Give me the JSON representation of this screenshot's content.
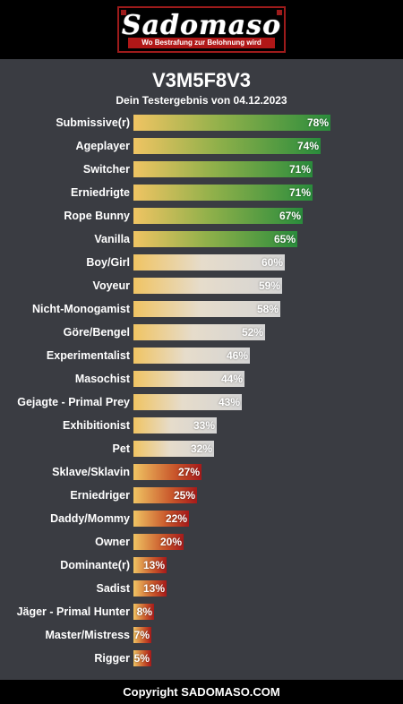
{
  "logo": {
    "word": "Sadomaso",
    "tagline": "Wo Bestrafung zur Belohnung wird"
  },
  "header": {
    "title": "V3M5F8V3",
    "subtitle": "Dein Testergebnis von 04.12.2023"
  },
  "colors": {
    "green": "#2a8c3c",
    "grey": "#d4d4d4",
    "red": "#a61a1a",
    "start": "#f0c463"
  },
  "results": [
    {
      "label": "Submissive(r)",
      "percent": "78%",
      "value": 78,
      "tone": "green"
    },
    {
      "label": "Ageplayer",
      "percent": "74%",
      "value": 74,
      "tone": "green"
    },
    {
      "label": "Switcher",
      "percent": "71%",
      "value": 71,
      "tone": "green"
    },
    {
      "label": "Erniedrigte",
      "percent": "71%",
      "value": 71,
      "tone": "green"
    },
    {
      "label": "Rope Bunny",
      "percent": "67%",
      "value": 67,
      "tone": "green"
    },
    {
      "label": "Vanilla",
      "percent": "65%",
      "value": 65,
      "tone": "green"
    },
    {
      "label": "Boy/Girl",
      "percent": "60%",
      "value": 60,
      "tone": "grey"
    },
    {
      "label": "Voyeur",
      "percent": "59%",
      "value": 59,
      "tone": "grey"
    },
    {
      "label": "Nicht-Monogamist",
      "percent": "58%",
      "value": 58,
      "tone": "grey"
    },
    {
      "label": "Göre/Bengel",
      "percent": "52%",
      "value": 52,
      "tone": "grey"
    },
    {
      "label": "Experimentalist",
      "percent": "46%",
      "value": 46,
      "tone": "grey"
    },
    {
      "label": "Masochist",
      "percent": "44%",
      "value": 44,
      "tone": "grey"
    },
    {
      "label": "Gejagte - Primal Prey",
      "percent": "43%",
      "value": 43,
      "tone": "grey"
    },
    {
      "label": "Exhibitionist",
      "percent": "33%",
      "value": 33,
      "tone": "grey"
    },
    {
      "label": "Pet",
      "percent": "32%",
      "value": 32,
      "tone": "grey"
    },
    {
      "label": "Sklave/Sklavin",
      "percent": "27%",
      "value": 27,
      "tone": "red"
    },
    {
      "label": "Erniedriger",
      "percent": "25%",
      "value": 25,
      "tone": "red"
    },
    {
      "label": "Daddy/Mommy",
      "percent": "22%",
      "value": 22,
      "tone": "red"
    },
    {
      "label": "Owner",
      "percent": "20%",
      "value": 20,
      "tone": "red"
    },
    {
      "label": "Dominante(r)",
      "percent": "13%",
      "value": 13,
      "tone": "red"
    },
    {
      "label": "Sadist",
      "percent": "13%",
      "value": 13,
      "tone": "red"
    },
    {
      "label": "Jäger - Primal Hunter",
      "percent": "8%",
      "value": 8,
      "tone": "red"
    },
    {
      "label": "Master/Mistress",
      "percent": "7%",
      "value": 7,
      "tone": "red"
    },
    {
      "label": "Rigger",
      "percent": "5%",
      "value": 5,
      "tone": "red"
    }
  ],
  "footer": {
    "copyright": "Copyright SADOMASO.COM"
  }
}
